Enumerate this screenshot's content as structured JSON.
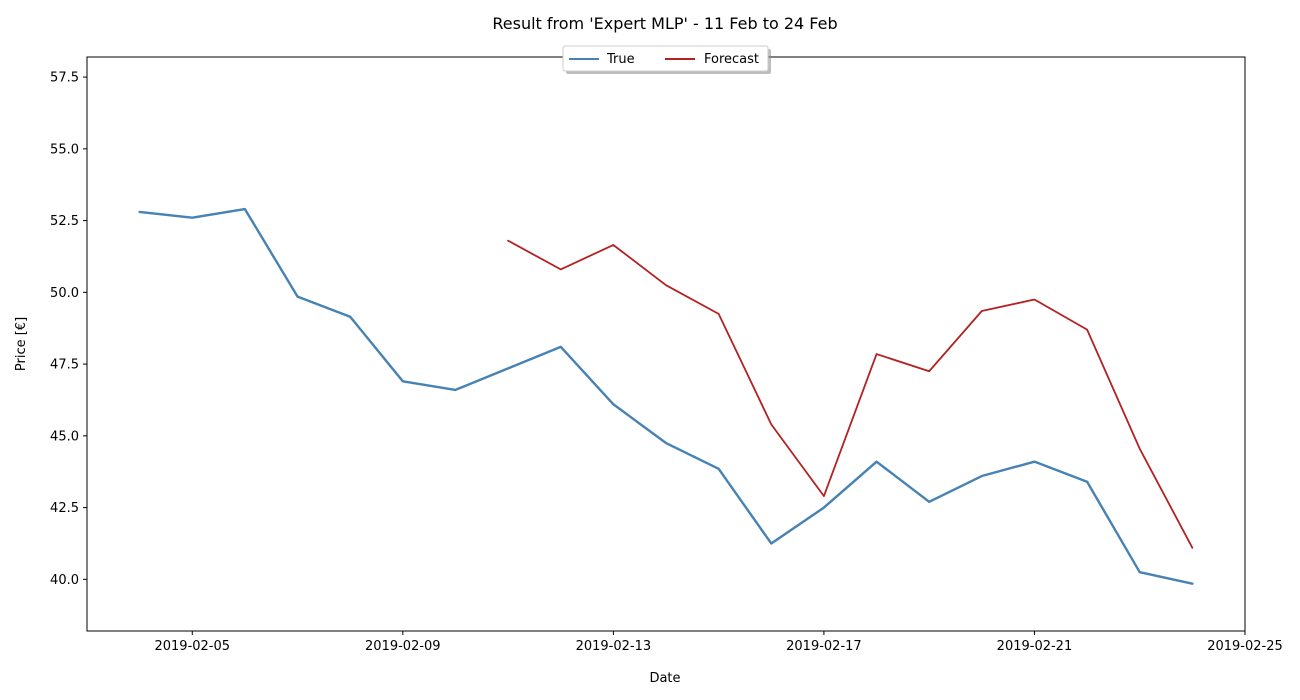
{
  "chart_data": {
    "type": "line",
    "title": "Result from 'Expert MLP' - 11 Feb to 24 Feb",
    "xlabel": "Date",
    "ylabel": "Price [€]",
    "xlim": [
      "2019-02-03",
      "2019-02-25"
    ],
    "ylim": [
      38.2,
      58.2
    ],
    "xticks": [
      "2019-02-05",
      "2019-02-09",
      "2019-02-13",
      "2019-02-17",
      "2019-02-21",
      "2019-02-25"
    ],
    "yticks": [
      "40.0",
      "42.5",
      "45.0",
      "47.5",
      "50.0",
      "52.5",
      "55.0",
      "57.5"
    ],
    "legend_position": "top-center",
    "grid": false,
    "series": [
      {
        "name": "True",
        "color": "#4682b4",
        "x": [
          "2019-02-04",
          "2019-02-05",
          "2019-02-06",
          "2019-02-07",
          "2019-02-08",
          "2019-02-09",
          "2019-02-10",
          "2019-02-11",
          "2019-02-12",
          "2019-02-13",
          "2019-02-14",
          "2019-02-15",
          "2019-02-16",
          "2019-02-17",
          "2019-02-18",
          "2019-02-19",
          "2019-02-20",
          "2019-02-21",
          "2019-02-22",
          "2019-02-23",
          "2019-02-24"
        ],
        "values": [
          52.8,
          52.6,
          52.9,
          49.85,
          49.15,
          46.9,
          46.6,
          47.35,
          48.1,
          46.1,
          44.75,
          43.85,
          41.25,
          42.5,
          44.1,
          42.7,
          43.6,
          44.1,
          43.4,
          40.25,
          39.85
        ]
      },
      {
        "name": "Forecast",
        "color": "#b22222",
        "x": [
          "2019-02-11",
          "2019-02-12",
          "2019-02-13",
          "2019-02-14",
          "2019-02-15",
          "2019-02-16",
          "2019-02-17",
          "2019-02-18",
          "2019-02-19",
          "2019-02-20",
          "2019-02-21",
          "2019-02-22",
          "2019-02-23",
          "2019-02-24"
        ],
        "values": [
          51.8,
          50.8,
          51.65,
          50.25,
          49.25,
          45.4,
          42.9,
          47.85,
          47.25,
          49.35,
          49.75,
          48.7,
          44.55,
          41.1
        ]
      }
    ]
  }
}
